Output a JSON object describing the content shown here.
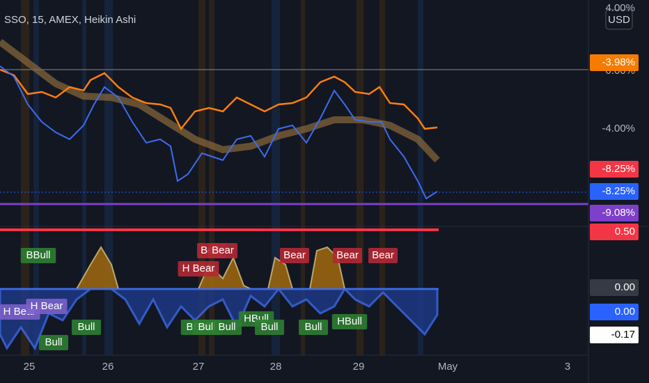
{
  "header": {
    "title": "SSO, 15, AMEX, Heikin Ashi",
    "currency": "USD"
  },
  "price_axis": [
    {
      "text": "4.00%",
      "style": "plain"
    },
    {
      "text": "0.00%",
      "style": "plain"
    },
    {
      "text": "-3.98%",
      "style": "box",
      "color": "#f57c00"
    },
    {
      "text": "-4.00%",
      "style": "plain"
    },
    {
      "text": "-8.25%",
      "style": "box",
      "color": "#f23645"
    },
    {
      "text": "-8.25%",
      "style": "box",
      "color": "#2962ff"
    },
    {
      "text": "-9.08%",
      "style": "box",
      "color": "#7e3fc9"
    }
  ],
  "osc_axis": [
    {
      "text": "0.50",
      "style": "box",
      "color": "#f23645"
    },
    {
      "text": "0.00",
      "style": "box",
      "color": "#363a45"
    },
    {
      "text": "0.00",
      "style": "box",
      "color": "#2962ff"
    },
    {
      "text": "-0.17",
      "style": "box",
      "color": "#ffffff"
    }
  ],
  "time_axis": [
    "25",
    "26",
    "27",
    "28",
    "29",
    "May",
    "3"
  ],
  "signals": [
    {
      "text": "BBull",
      "color": "#2e7d32"
    },
    {
      "text": "Bear",
      "color": "#b22833"
    },
    {
      "text": "Bear",
      "color": "#b22833"
    },
    {
      "text": "Bear",
      "color": "#b22833"
    },
    {
      "text": "Bear",
      "color": "#b22833"
    },
    {
      "text": "Bear",
      "color": "#b22833"
    },
    {
      "text": "H Bear",
      "color": "#b22833"
    },
    {
      "text": "H Bear",
      "color": "#7b5fc9"
    },
    {
      "text": "H Bear",
      "color": "#7b5fc9"
    },
    {
      "text": "Bull",
      "color": "#2e7d32"
    },
    {
      "text": "Bull",
      "color": "#2e7d32"
    },
    {
      "text": "BBull",
      "color": "#2e7d32"
    },
    {
      "text": "Bull",
      "color": "#2e7d32"
    },
    {
      "text": "Bull",
      "color": "#2e7d32"
    },
    {
      "text": "HBull",
      "color": "#2e7d32"
    },
    {
      "text": "Bull",
      "color": "#2e7d32"
    },
    {
      "text": "Bull",
      "color": "#2e7d32"
    },
    {
      "text": "HBull",
      "color": "#2e7d32"
    }
  ]
}
